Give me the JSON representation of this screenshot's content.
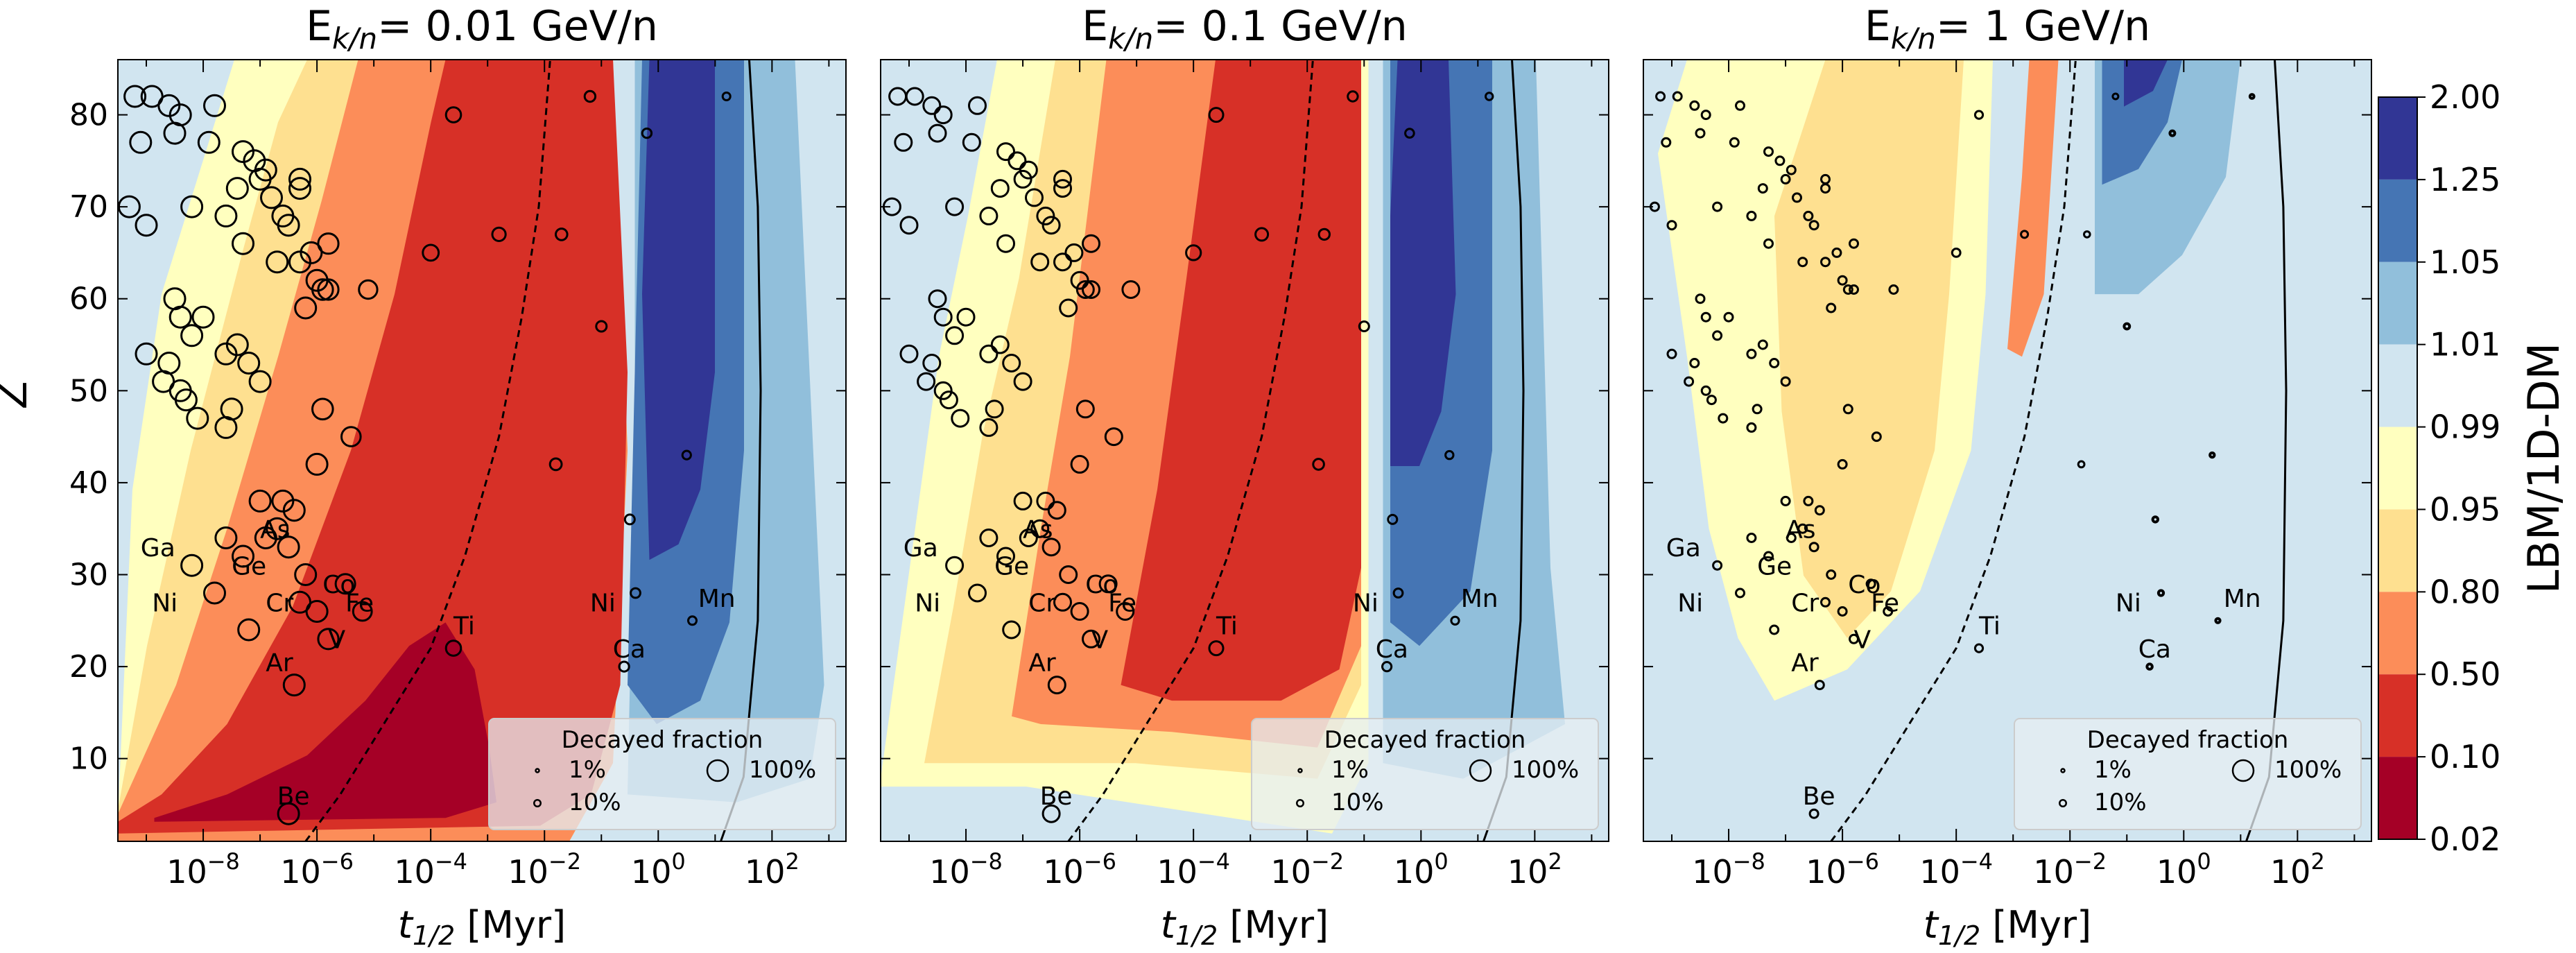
{
  "figure": {
    "ylabel": "Z",
    "xlabel_main": "t",
    "xlabel_sub": "1/2",
    "xlabel_unit": " [Myr]",
    "colorbar": {
      "label": "LBM/1D-DM",
      "ticks": [
        "2.00",
        "1.25",
        "1.05",
        "1.01",
        "0.99",
        "0.95",
        "0.80",
        "0.50",
        "0.10",
        "0.02"
      ],
      "colors": [
        "#313695",
        "#4575b4",
        "#91bfdb",
        "#d1e5f0",
        "#ffffbf",
        "#fee090",
        "#fc8d59",
        "#d73027",
        "#a50026"
      ]
    }
  },
  "chart_data": [
    {
      "type": "contour",
      "title_prefix": "E",
      "title_sub": "k/n",
      "title_suffix": "=  0.01 GeV/n",
      "xscale": "log",
      "xlim_log10": [
        -9.5,
        3.3
      ],
      "ylim": [
        1,
        86
      ],
      "xticks_log10": [
        -8,
        -6,
        -4,
        -2,
        0,
        2
      ],
      "yticks": [
        10,
        20,
        30,
        40,
        50,
        60,
        70,
        80
      ],
      "circle_scale": "large",
      "labels": [
        {
          "text": "Ga",
          "x_log10": -9.1,
          "z": 32
        },
        {
          "text": "As",
          "x_log10": -7.0,
          "z": 34
        },
        {
          "text": "Ge",
          "x_log10": -7.5,
          "z": 30
        },
        {
          "text": "Ni",
          "x_log10": -8.9,
          "z": 26
        },
        {
          "text": "Cr",
          "x_log10": -6.9,
          "z": 26
        },
        {
          "text": "Co",
          "x_log10": -5.9,
          "z": 28
        },
        {
          "text": "Fe",
          "x_log10": -5.5,
          "z": 26
        },
        {
          "text": "Ar",
          "x_log10": -6.9,
          "z": 19.5
        },
        {
          "text": "V",
          "x_log10": -5.8,
          "z": 22
        },
        {
          "text": "Ti",
          "x_log10": -3.6,
          "z": 23.5
        },
        {
          "text": "Be",
          "x_log10": -6.7,
          "z": 5
        },
        {
          "text": "Ni",
          "x_log10": -1.2,
          "z": 26
        },
        {
          "text": "Ca",
          "x_log10": -0.8,
          "z": 21
        },
        {
          "text": "Mn",
          "x_log10": 0.7,
          "z": 26.5
        }
      ]
    },
    {
      "type": "contour",
      "title_prefix": "E",
      "title_sub": "k/n",
      "title_suffix": "=  0.1 GeV/n",
      "xscale": "log",
      "xlim_log10": [
        -9.5,
        3.3
      ],
      "ylim": [
        1,
        86
      ],
      "xticks_log10": [
        -8,
        -6,
        -4,
        -2,
        0,
        2
      ],
      "yticks": [
        10,
        20,
        30,
        40,
        50,
        60,
        70,
        80
      ],
      "circle_scale": "medium",
      "labels": [
        {
          "text": "Ga",
          "x_log10": -9.1,
          "z": 32
        },
        {
          "text": "As",
          "x_log10": -7.0,
          "z": 34
        },
        {
          "text": "Ge",
          "x_log10": -7.5,
          "z": 30
        },
        {
          "text": "Ni",
          "x_log10": -8.9,
          "z": 26
        },
        {
          "text": "Cr",
          "x_log10": -6.9,
          "z": 26
        },
        {
          "text": "Co",
          "x_log10": -5.9,
          "z": 28
        },
        {
          "text": "Fe",
          "x_log10": -5.5,
          "z": 26
        },
        {
          "text": "Ar",
          "x_log10": -6.9,
          "z": 19.5
        },
        {
          "text": "V",
          "x_log10": -5.8,
          "z": 22
        },
        {
          "text": "Ti",
          "x_log10": -3.6,
          "z": 23.5
        },
        {
          "text": "Be",
          "x_log10": -6.7,
          "z": 5
        },
        {
          "text": "Ni",
          "x_log10": -1.2,
          "z": 26
        },
        {
          "text": "Ca",
          "x_log10": -0.8,
          "z": 21
        },
        {
          "text": "Mn",
          "x_log10": 0.7,
          "z": 26.5
        }
      ]
    },
    {
      "type": "contour",
      "title_prefix": "E",
      "title_sub": "k/n",
      "title_suffix": "=  1 GeV/n",
      "xscale": "log",
      "xlim_log10": [
        -9.5,
        3.3
      ],
      "ylim": [
        1,
        86
      ],
      "xticks_log10": [
        -8,
        -6,
        -4,
        -2,
        0,
        2
      ],
      "yticks": [
        10,
        20,
        30,
        40,
        50,
        60,
        70,
        80
      ],
      "circle_scale": "small",
      "labels": [
        {
          "text": "Ga",
          "x_log10": -9.1,
          "z": 32
        },
        {
          "text": "As",
          "x_log10": -7.0,
          "z": 34
        },
        {
          "text": "Ge",
          "x_log10": -7.5,
          "z": 30
        },
        {
          "text": "Ni",
          "x_log10": -8.9,
          "z": 26
        },
        {
          "text": "Cr",
          "x_log10": -6.9,
          "z": 26
        },
        {
          "text": "Co",
          "x_log10": -5.9,
          "z": 28
        },
        {
          "text": "Fe",
          "x_log10": -5.5,
          "z": 26
        },
        {
          "text": "Ar",
          "x_log10": -6.9,
          "z": 19.5
        },
        {
          "text": "V",
          "x_log10": -5.8,
          "z": 22
        },
        {
          "text": "Ti",
          "x_log10": -3.6,
          "z": 23.5
        },
        {
          "text": "Be",
          "x_log10": -6.7,
          "z": 5
        },
        {
          "text": "Ni",
          "x_log10": -1.2,
          "z": 26
        },
        {
          "text": "Ca",
          "x_log10": -0.8,
          "z": 21
        },
        {
          "text": "Mn",
          "x_log10": 0.7,
          "z": 26.5
        }
      ]
    }
  ],
  "legend": {
    "title": "Decayed fraction",
    "entries": [
      {
        "label": "1%",
        "fraction": 0.01
      },
      {
        "label": "10%",
        "fraction": 0.1
      },
      {
        "label": "100%",
        "fraction": 1.0
      }
    ]
  }
}
